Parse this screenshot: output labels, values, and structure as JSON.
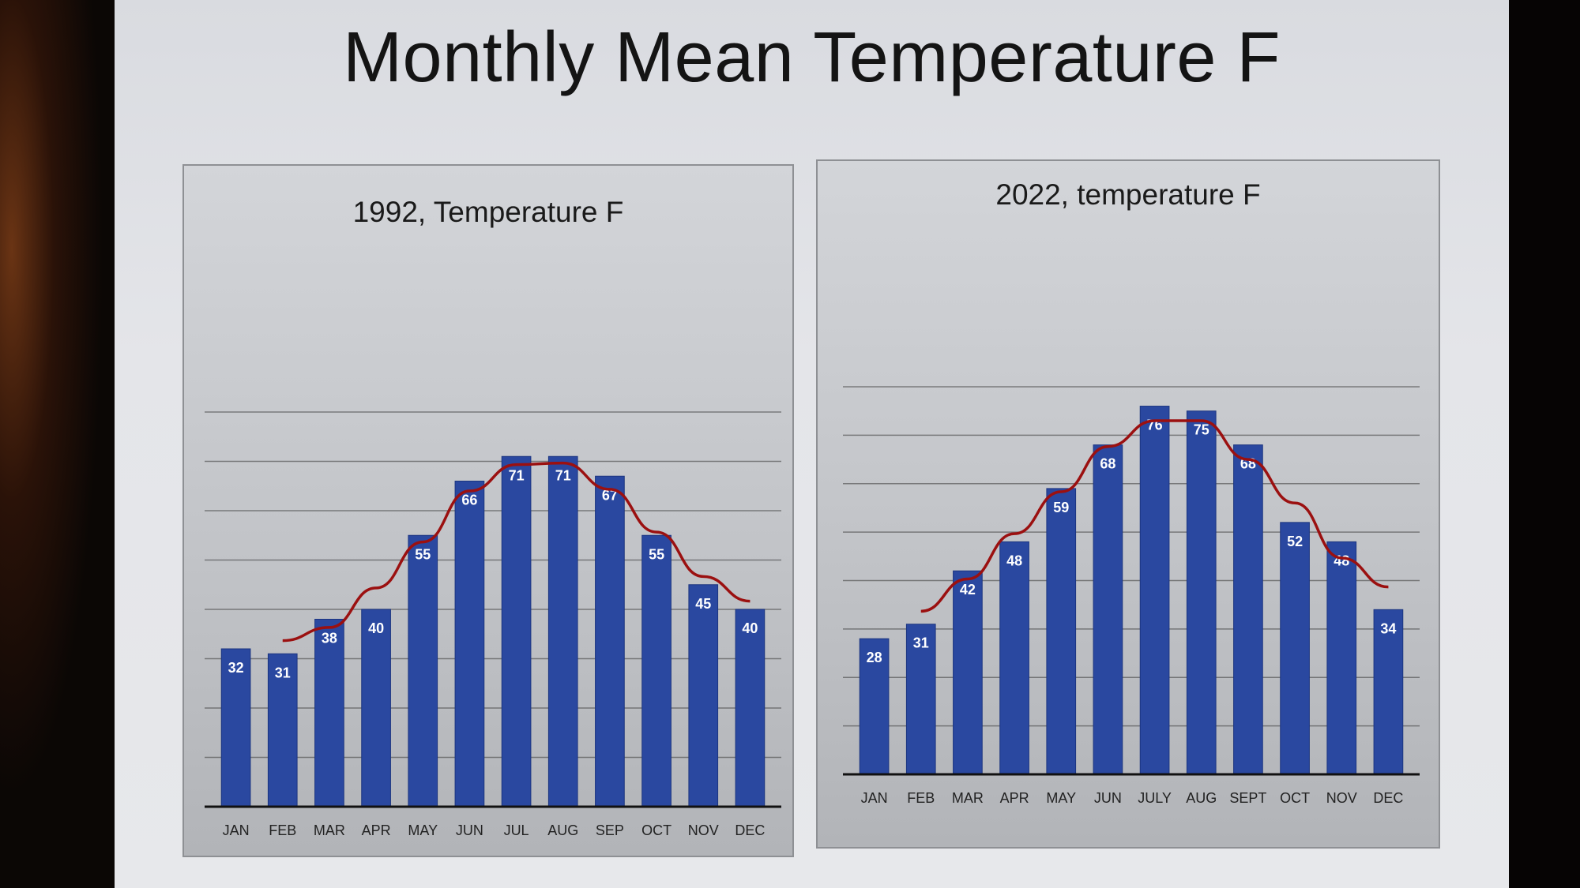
{
  "slide": {
    "title": "Monthly Mean Temperature F"
  },
  "colors": {
    "bar": "#2a48a0",
    "trend": "#9b1010",
    "grid": "#3a3a3a"
  },
  "chart_data": [
    {
      "type": "bar",
      "title": "1992, Temperature F",
      "categories": [
        "JAN",
        "FEB",
        "MAR",
        "APR",
        "MAY",
        "JUN",
        "JUL",
        "AUG",
        "SEP",
        "OCT",
        "NOV",
        "DEC"
      ],
      "values": [
        32,
        31,
        38,
        40,
        55,
        66,
        71,
        71,
        67,
        55,
        45,
        40
      ],
      "trendline": "smoothed line from FEB to DEC",
      "ylim": [
        0,
        80
      ],
      "grid": true,
      "legend": "none"
    },
    {
      "type": "bar",
      "title": "2022, temperature F",
      "categories": [
        "JAN",
        "FEB",
        "MAR",
        "APR",
        "MAY",
        "JUN",
        "JULY",
        "AUG",
        "SEPT",
        "OCT",
        "NOV",
        "DEC"
      ],
      "values": [
        28,
        31,
        42,
        48,
        59,
        68,
        76,
        75,
        68,
        52,
        48,
        34
      ],
      "trendline": "smoothed line from FEB to DEC",
      "ylim": [
        0,
        80
      ],
      "grid": true,
      "legend": "none"
    }
  ]
}
